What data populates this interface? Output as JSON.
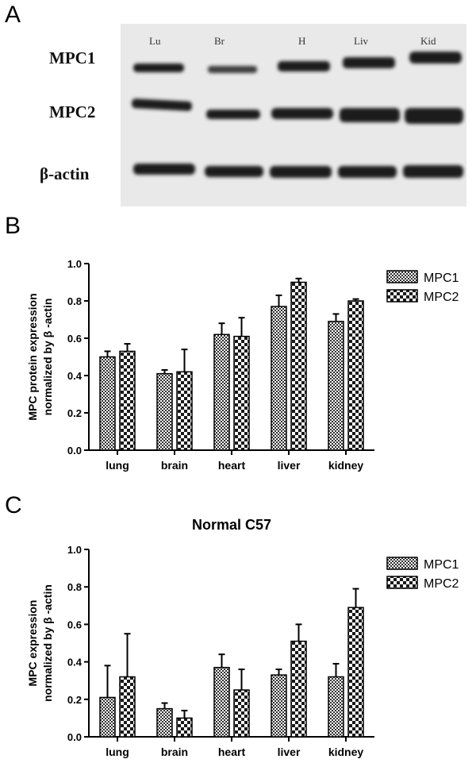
{
  "panels": {
    "a": "A",
    "b": "B",
    "c": "C"
  },
  "blot": {
    "lane_labels": [
      "Lu",
      "Br",
      "H",
      "Liv",
      "Kid"
    ],
    "row_labels": [
      "MPC1",
      "MPC2",
      "β-actin"
    ]
  },
  "colors": {
    "bar_fill": "#808080",
    "bar_stroke": "#000000",
    "blot_background": "#e9e9e9"
  },
  "chart_data": [
    {
      "type": "bar",
      "title": "",
      "ylabel_line1": "MPC protein expression",
      "ylabel_line2": "normalized by β -actin",
      "xlabel": "",
      "categories": [
        "lung",
        "brain",
        "heart",
        "liver",
        "kidney"
      ],
      "ylim": [
        0,
        1.0
      ],
      "yticks": [
        "0.0",
        "0.2",
        "0.4",
        "0.6",
        "0.8",
        "1.0"
      ],
      "legend_position": "top-right",
      "series": [
        {
          "name": "MPC1",
          "pattern": "checker-fine",
          "values": [
            0.5,
            0.41,
            0.62,
            0.77,
            0.69
          ],
          "errors": [
            0.03,
            0.02,
            0.06,
            0.06,
            0.04
          ]
        },
        {
          "name": "MPC2",
          "pattern": "checker-coarse",
          "values": [
            0.53,
            0.42,
            0.61,
            0.9,
            0.8
          ],
          "errors": [
            0.04,
            0.12,
            0.1,
            0.02,
            0.01
          ]
        }
      ]
    },
    {
      "type": "bar",
      "title": "Normal C57",
      "ylabel_line1": "MPC expression",
      "ylabel_line2": "normalized by β -actin",
      "xlabel": "",
      "categories": [
        "lung",
        "brain",
        "heart",
        "liver",
        "kidney"
      ],
      "ylim": [
        0,
        1.0
      ],
      "yticks": [
        "0.0",
        "0.2",
        "0.4",
        "0.6",
        "0.8",
        "1.0"
      ],
      "legend_position": "top-right",
      "series": [
        {
          "name": "MPC1",
          "pattern": "checker-fine",
          "values": [
            0.21,
            0.15,
            0.37,
            0.33,
            0.32
          ],
          "errors": [
            0.17,
            0.03,
            0.07,
            0.03,
            0.07
          ]
        },
        {
          "name": "MPC2",
          "pattern": "checker-coarse",
          "values": [
            0.32,
            0.1,
            0.25,
            0.51,
            0.69
          ],
          "errors": [
            0.23,
            0.04,
            0.11,
            0.09,
            0.1
          ]
        }
      ]
    }
  ]
}
